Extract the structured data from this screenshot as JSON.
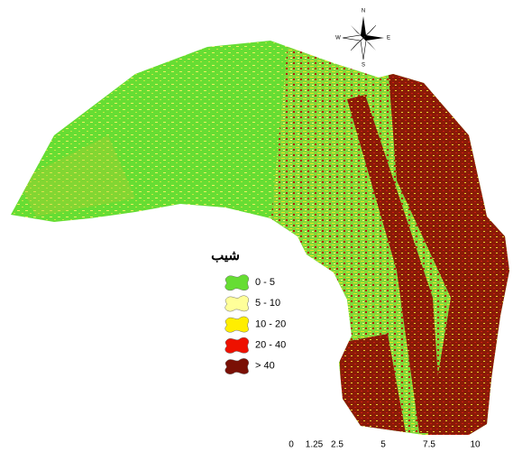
{
  "legend": {
    "title": "شیب",
    "items": [
      {
        "label": "0 - 5",
        "color": "#66dd33"
      },
      {
        "label": "5 - 10",
        "color": "#ffff99"
      },
      {
        "label": "10 - 20",
        "color": "#ffee00"
      },
      {
        "label": "20 - 40",
        "color": "#ee1100"
      },
      {
        "label": "> 40",
        "color": "#7a1005"
      }
    ]
  },
  "compass": {
    "north": "N",
    "east": "E",
    "south": "S",
    "west": "W"
  },
  "scale_bar": {
    "ticks": [
      0,
      1.25,
      2.5,
      5,
      7.5,
      10
    ]
  }
}
